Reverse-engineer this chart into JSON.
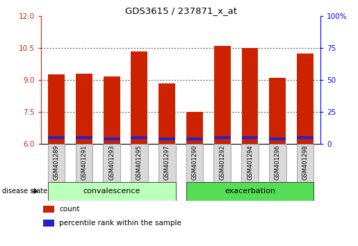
{
  "title": "GDS3615 / 237871_x_at",
  "samples": [
    "GSM401289",
    "GSM401291",
    "GSM401293",
    "GSM401295",
    "GSM401297",
    "GSM401290",
    "GSM401292",
    "GSM401294",
    "GSM401296",
    "GSM401298"
  ],
  "red_values": [
    9.25,
    9.3,
    9.15,
    10.35,
    8.85,
    7.5,
    10.6,
    10.5,
    9.1,
    10.25
  ],
  "blue_values": [
    0.13,
    0.13,
    0.1,
    0.13,
    0.13,
    0.1,
    0.13,
    0.13,
    0.1,
    0.13
  ],
  "blue_positions": [
    6.22,
    6.22,
    6.18,
    6.22,
    6.18,
    6.18,
    6.22,
    6.22,
    6.18,
    6.22
  ],
  "ymin": 6,
  "ymax": 12,
  "yticks_left": [
    6,
    7.5,
    9,
    10.5,
    12
  ],
  "yticks_right": [
    0,
    25,
    50,
    75,
    100
  ],
  "bar_color_red": "#cc2200",
  "bar_color_blue": "#2222cc",
  "group1_label": "convalescence",
  "group2_label": "exacerbation",
  "group1_color": "#bbffbb",
  "group2_color": "#55dd55",
  "group1_indices": [
    0,
    4
  ],
  "group2_indices": [
    5,
    9
  ],
  "disease_state_label": "disease state",
  "legend_count": "count",
  "legend_percentile": "percentile rank within the sample",
  "bar_width": 0.6,
  "bg_color": "#ffffff"
}
